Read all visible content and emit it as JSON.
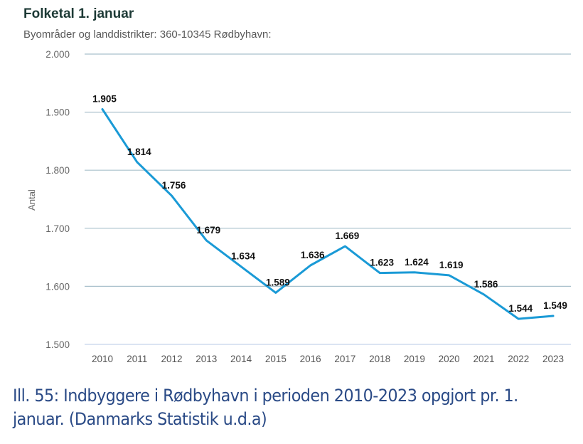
{
  "header": {
    "title": "Folketal 1. januar",
    "subtitle": "Byområder og landdistrikter: 360-10345 Rødbyhavn:"
  },
  "caption": {
    "line1": "Ill. 55: Indbyggere i Rødbyhavn i perioden 2010-2023 opgjort pr. 1.",
    "line2": "januar. (Danmarks Statistik u.d.a)"
  },
  "chart_data": {
    "type": "line",
    "title": "Folketal 1. januar",
    "subtitle": "Byområder og landdistrikter: 360-10345 Rødbyhavn:",
    "xlabel": "",
    "ylabel": "Antal",
    "ylim": [
      1500,
      2000
    ],
    "yticks": [
      1500,
      1600,
      1700,
      1800,
      1900,
      2000
    ],
    "ytick_labels": [
      "1.500",
      "1.600",
      "1.700",
      "1.800",
      "1.900",
      "2.000"
    ],
    "grid": true,
    "legend": "none",
    "categories": [
      "2010",
      "2011",
      "2012",
      "2013",
      "2014",
      "2015",
      "2016",
      "2017",
      "2018",
      "2019",
      "2020",
      "2021",
      "2022",
      "2023"
    ],
    "series": [
      {
        "name": "Rødbyhavn",
        "color": "#1a9ad6",
        "values": [
          1905,
          1814,
          1756,
          1679,
          1634,
          1589,
          1636,
          1669,
          1623,
          1624,
          1619,
          1586,
          1544,
          1549
        ],
        "labels": [
          "1.905",
          "1.814",
          "1.756",
          "1.679",
          "1.634",
          "1.589",
          "1.636",
          "1.669",
          "1.623",
          "1.624",
          "1.619",
          "1.586",
          "1.544",
          "1.549"
        ]
      }
    ],
    "grid_color": "#a9c0cc"
  }
}
